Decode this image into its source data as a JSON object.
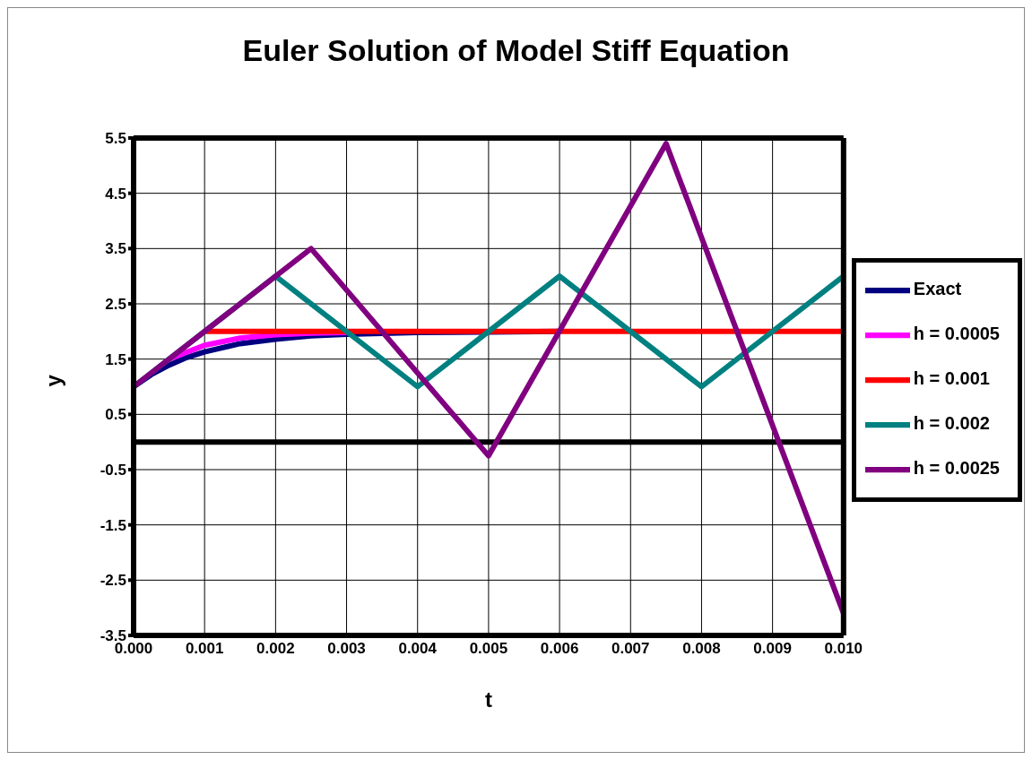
{
  "chart_data": {
    "type": "line",
    "title": "Euler Solution of Model Stiff Equation",
    "xlabel": "t",
    "ylabel": "y",
    "xlim": [
      0,
      0.01
    ],
    "xticks": [
      {
        "value": 0,
        "label": "0.000"
      },
      {
        "value": 0.001,
        "label": "0.001"
      },
      {
        "value": 0.002,
        "label": "0.002"
      },
      {
        "value": 0.003,
        "label": "0.003"
      },
      {
        "value": 0.004,
        "label": "0.004"
      },
      {
        "value": 0.005,
        "label": "0.005"
      },
      {
        "value": 0.006,
        "label": "0.006"
      },
      {
        "value": 0.007,
        "label": "0.007"
      },
      {
        "value": 0.008,
        "label": "0.008"
      },
      {
        "value": 0.009,
        "label": "0.009"
      },
      {
        "value": 0.01,
        "label": "0.010"
      }
    ],
    "ylim": [
      -3.5,
      5.5
    ],
    "yticks": [
      -3.5,
      -2.5,
      -1.5,
      -0.5,
      0.5,
      1.5,
      2.5,
      3.5,
      4.5,
      5.5
    ],
    "grid": true,
    "legend": "right",
    "marker": "none",
    "line_style": "solid",
    "ref_lines": [
      {
        "axis": "y",
        "value": 0,
        "color": "#000000"
      }
    ],
    "series": [
      {
        "name": "Exact",
        "color": "#000080",
        "x": [
          0,
          0.00025,
          0.0005,
          0.00075,
          0.001,
          0.0015,
          0.002,
          0.0025,
          0.003,
          0.004,
          0.005,
          0.006
        ],
        "values": [
          1,
          1.22,
          1.39,
          1.53,
          1.63,
          1.78,
          1.86,
          1.92,
          1.95,
          1.98,
          1.99,
          2
        ]
      },
      {
        "name": "h = 0.0005",
        "color": "#ff00ff",
        "x": [
          0.0005,
          0.001,
          0.0015,
          0.002,
          0.0025,
          0.003
        ],
        "values": [
          1.5,
          1.75,
          1.88,
          1.94,
          1.97,
          1.98
        ]
      },
      {
        "name": "h = 0.001",
        "color": "#ff0000",
        "x": [
          0.001,
          0.002,
          0.003,
          0.004,
          0.005,
          0.006,
          0.007,
          0.008,
          0.009,
          0.01
        ],
        "values": [
          2,
          2,
          2,
          2,
          2,
          2,
          2,
          2,
          2,
          2
        ]
      },
      {
        "name": "h = 0.002",
        "color": "#008080",
        "x": [
          0,
          0.002,
          0.004,
          0.006,
          0.008,
          0.01
        ],
        "values": [
          1,
          3,
          1,
          3,
          1,
          3
        ]
      },
      {
        "name": "h = 0.0025",
        "color": "#800080",
        "x": [
          0,
          0.0025,
          0.005,
          0.0075,
          0.01
        ],
        "values": [
          1,
          3.5,
          -0.25,
          5.4,
          -3.1
        ]
      }
    ]
  }
}
